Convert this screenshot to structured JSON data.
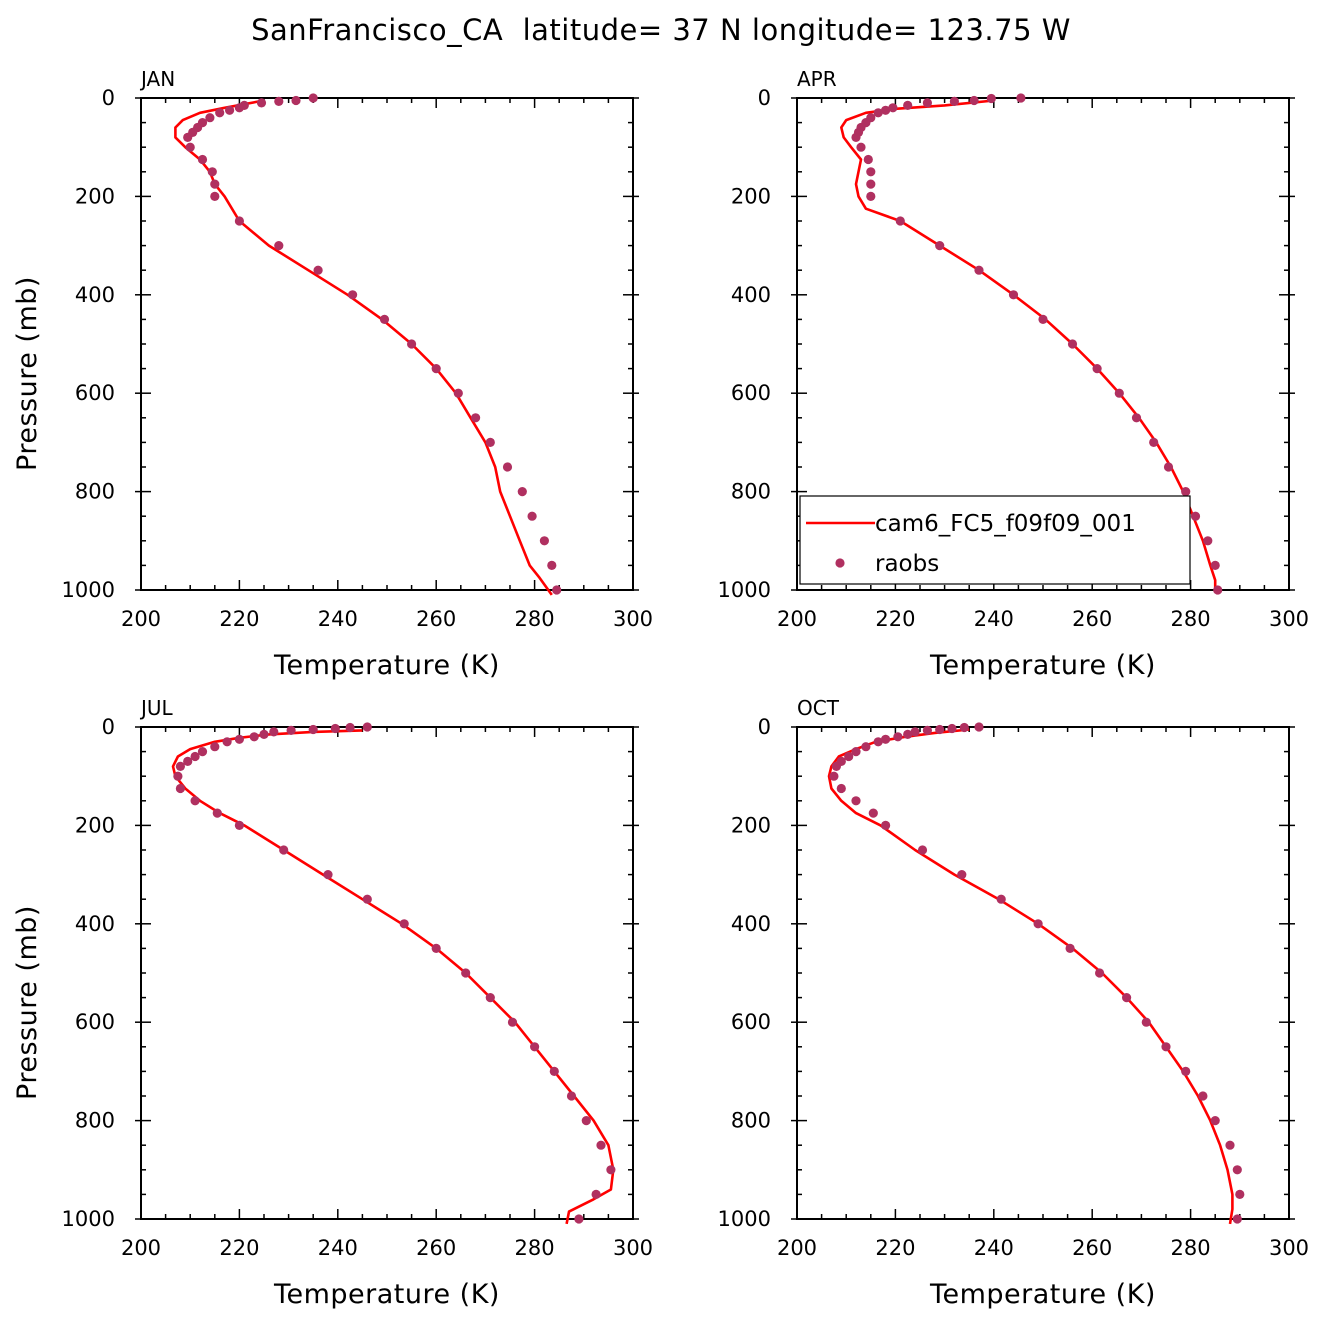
{
  "figure": {
    "title": "SanFrancisco_CA  latitude= 37 N longitude= 123.75 W"
  },
  "colors": {
    "model_line": "#ff0000",
    "obs_marker": "#b03060",
    "axes": "#000000"
  },
  "legend": {
    "panel": "APR",
    "placement": "lower-left",
    "entries": [
      {
        "label": "cam6_FC5_f09f09_001",
        "style": "line"
      },
      {
        "label": "raobs",
        "style": "marker"
      }
    ]
  },
  "chart_data": [
    {
      "type": "line",
      "label": "JAN",
      "xlabel": "Temperature (K)",
      "ylabel": "Pressure (mb)",
      "xlim": [
        200,
        300
      ],
      "ylim": [
        1000,
        0
      ],
      "y_inverted": true,
      "xticks": [
        200,
        220,
        240,
        260,
        280,
        300
      ],
      "yticks": [
        0,
        200,
        400,
        600,
        800,
        1000
      ],
      "series": [
        {
          "name": "cam6_FC5_f09f09_001",
          "kind": "line",
          "x": [
            224,
            217,
            212,
            208.5,
            207,
            207,
            209,
            212,
            214,
            215,
            217,
            220,
            226,
            234,
            242,
            249,
            255,
            260,
            264,
            267,
            270,
            272,
            273,
            275,
            277,
            279,
            281,
            283.5
          ],
          "y": [
            7,
            20,
            30,
            45,
            60,
            80,
            100,
            125,
            150,
            175,
            200,
            250,
            300,
            350,
            400,
            450,
            500,
            550,
            600,
            650,
            700,
            750,
            800,
            850,
            900,
            950,
            975,
            1010
          ]
        },
        {
          "name": "raobs",
          "kind": "scatter",
          "x": [
            235,
            231.5,
            228,
            224.5,
            221,
            220,
            218,
            216,
            214,
            212.5,
            211.5,
            210.5,
            209.5,
            210,
            212.5,
            214.5,
            215,
            215,
            220,
            228,
            236,
            243,
            249.5,
            255,
            260,
            264.5,
            268,
            271,
            274.5,
            277.5,
            279.5,
            282,
            283.5,
            284.5
          ],
          "y": [
            0,
            5,
            7,
            10,
            15,
            20,
            25,
            30,
            40,
            50,
            60,
            70,
            80,
            100,
            125,
            150,
            175,
            200,
            250,
            300,
            350,
            400,
            450,
            500,
            550,
            600,
            650,
            700,
            750,
            800,
            850,
            900,
            950,
            1000
          ]
        }
      ]
    },
    {
      "type": "line",
      "label": "APR",
      "xlabel": "Temperature (K)",
      "ylabel": "",
      "xlim": [
        200,
        300
      ],
      "ylim": [
        1000,
        0
      ],
      "y_inverted": true,
      "xticks": [
        200,
        220,
        240,
        260,
        280,
        300
      ],
      "yticks": [
        0,
        200,
        400,
        600,
        800,
        1000
      ],
      "series": [
        {
          "name": "cam6_FC5_f09f09_001",
          "kind": "line",
          "x": [
            240,
            230,
            220,
            214,
            210,
            209,
            209.5,
            211,
            213,
            212.5,
            212,
            212.5,
            214,
            221,
            229,
            237,
            244,
            250.5,
            256,
            261,
            265.5,
            269.5,
            273,
            276,
            278.5,
            280.5,
            282.5,
            284,
            285,
            285
          ],
          "y": [
            5,
            15,
            22,
            30,
            45,
            60,
            80,
            100,
            125,
            150,
            175,
            200,
            225,
            250,
            300,
            350,
            400,
            450,
            500,
            550,
            600,
            650,
            700,
            750,
            800,
            850,
            900,
            950,
            980,
            1005
          ]
        },
        {
          "name": "raobs",
          "kind": "scatter",
          "x": [
            245.5,
            239.5,
            236,
            232,
            226.5,
            222.5,
            219.5,
            218,
            216.5,
            215,
            214,
            213,
            212.5,
            212,
            213,
            214.5,
            215,
            215,
            215,
            221,
            229,
            237,
            244,
            250,
            256,
            261,
            265.5,
            269,
            272.5,
            275.5,
            279,
            281,
            283.5,
            285,
            285.5
          ],
          "y": [
            0,
            1,
            5,
            7,
            10,
            15,
            20,
            25,
            30,
            40,
            50,
            60,
            70,
            80,
            100,
            125,
            150,
            175,
            200,
            250,
            300,
            350,
            400,
            450,
            500,
            550,
            600,
            650,
            700,
            750,
            800,
            850,
            900,
            950,
            1000
          ]
        }
      ]
    },
    {
      "type": "line",
      "label": "JUL",
      "xlabel": "Temperature (K)",
      "ylabel": "Pressure (mb)",
      "xlim": [
        200,
        300
      ],
      "ylim": [
        1000,
        0
      ],
      "y_inverted": true,
      "xticks": [
        200,
        220,
        240,
        260,
        280,
        300
      ],
      "yticks": [
        0,
        200,
        400,
        600,
        800,
        1000
      ],
      "series": [
        {
          "name": "cam6_FC5_f09f09_001",
          "kind": "line",
          "x": [
            245,
            235,
            226,
            220,
            215,
            210,
            207.5,
            206.5,
            207,
            209,
            212,
            216,
            221,
            229,
            237,
            245,
            253,
            260,
            266,
            271,
            276,
            280,
            284,
            288,
            292,
            295,
            296,
            295.5,
            292,
            287,
            286.5
          ],
          "y": [
            7,
            10,
            15,
            22,
            30,
            45,
            60,
            80,
            100,
            125,
            150,
            175,
            200,
            250,
            300,
            350,
            400,
            450,
            500,
            550,
            600,
            650,
            700,
            750,
            800,
            850,
            900,
            940,
            960,
            985,
            1010
          ]
        },
        {
          "name": "raobs",
          "kind": "scatter",
          "x": [
            246,
            242.5,
            239.5,
            235,
            230.5,
            227,
            225,
            223,
            220,
            217.5,
            215,
            212.5,
            211,
            209.5,
            208,
            207.5,
            208,
            211,
            215.5,
            220,
            229,
            238,
            246,
            253.5,
            260,
            266,
            271,
            275.5,
            280,
            284,
            287.5,
            290.5,
            293.5,
            295.5,
            292.5,
            289
          ],
          "y": [
            0,
            1,
            3,
            5,
            7,
            10,
            15,
            20,
            25,
            30,
            40,
            50,
            60,
            70,
            80,
            100,
            125,
            150,
            175,
            200,
            250,
            300,
            350,
            400,
            450,
            500,
            550,
            600,
            650,
            700,
            750,
            800,
            850,
            900,
            950,
            1000
          ]
        }
      ]
    },
    {
      "type": "line",
      "label": "OCT",
      "xlabel": "Temperature (K)",
      "ylabel": "",
      "xlim": [
        200,
        300
      ],
      "ylim": [
        1000,
        0
      ],
      "y_inverted": true,
      "xticks": [
        200,
        220,
        240,
        260,
        280,
        300
      ],
      "yticks": [
        0,
        200,
        400,
        600,
        800,
        1000
      ],
      "series": [
        {
          "name": "cam6_FC5_f09f09_001",
          "kind": "line",
          "x": [
            235,
            228,
            222,
            216,
            212,
            208.5,
            207,
            206.5,
            207,
            209,
            212,
            217,
            224,
            232,
            241,
            249,
            256,
            262,
            267,
            271.5,
            275,
            278.5,
            281.5,
            284,
            286,
            287.5,
            288.5,
            288.5,
            288
          ],
          "y": [
            5,
            12,
            20,
            30,
            45,
            60,
            80,
            100,
            125,
            150,
            175,
            200,
            250,
            300,
            350,
            400,
            450,
            500,
            550,
            600,
            650,
            700,
            750,
            800,
            850,
            900,
            950,
            980,
            1010
          ]
        },
        {
          "name": "raobs",
          "kind": "scatter",
          "x": [
            237,
            234,
            231.5,
            229,
            226.5,
            224,
            222.5,
            220.5,
            218,
            216.5,
            214,
            212,
            210.5,
            209,
            208,
            207.5,
            209,
            212,
            215.5,
            218,
            225.5,
            233.5,
            241.5,
            249,
            255.5,
            261.5,
            267,
            271,
            275,
            279,
            282.5,
            285,
            288,
            289.5,
            290,
            289.5
          ],
          "y": [
            0,
            1,
            3,
            5,
            7,
            10,
            15,
            20,
            25,
            30,
            40,
            50,
            60,
            70,
            80,
            100,
            125,
            150,
            175,
            200,
            250,
            300,
            350,
            400,
            450,
            500,
            550,
            600,
            650,
            700,
            750,
            800,
            850,
            900,
            950,
            1000
          ]
        }
      ]
    }
  ]
}
